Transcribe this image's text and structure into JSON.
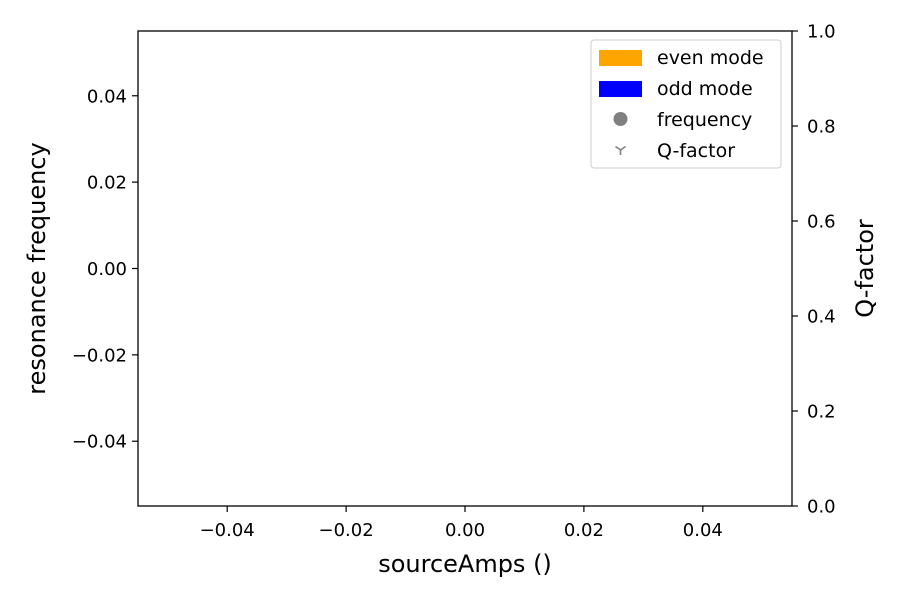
{
  "chart_data": {
    "type": "scatter",
    "x": [],
    "series": [],
    "xlabel": "sourceAmps ()",
    "ylabel": "resonance frequency",
    "y2label": "Q-factor",
    "xlim": [
      -0.055,
      0.055
    ],
    "ylim": [
      -0.055,
      0.055
    ],
    "y2lim": [
      0.0,
      1.0
    ],
    "xticks": [
      -0.04,
      -0.02,
      0.0,
      0.02,
      0.04
    ],
    "xtick_labels": [
      "−0.04",
      "−0.02",
      "0.00",
      "0.02",
      "0.04"
    ],
    "yticks": [
      0.04,
      0.02,
      0.0,
      -0.02,
      -0.04
    ],
    "ytick_labels": [
      "0.04",
      "0.02",
      "0.00",
      "−0.02",
      "−0.04"
    ],
    "y2ticks": [
      1.0,
      0.8,
      0.6,
      0.4,
      0.2,
      0.0
    ],
    "y2tick_labels": [
      "1.0",
      "0.8",
      "0.6",
      "0.4",
      "0.2",
      "0.0"
    ],
    "grid": false,
    "legend": {
      "placement": "top-right",
      "entries": [
        {
          "label": "even mode",
          "kind": "patch",
          "color": "#ffa500"
        },
        {
          "label": "odd mode",
          "kind": "patch",
          "color": "#0000ff"
        },
        {
          "label": "frequency",
          "kind": "circle-marker",
          "color": "#808080"
        },
        {
          "label": "Q-factor",
          "kind": "tri-down-marker",
          "color": "#808080"
        }
      ]
    }
  }
}
